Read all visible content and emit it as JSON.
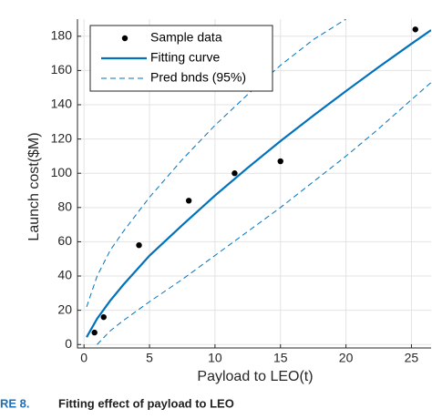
{
  "chart_data": {
    "type": "scatter",
    "xlabel": "Payload to LEO(t)",
    "ylabel": "Launch cost($M)",
    "caption_label": "RE 8.",
    "caption": "Fitting effect of payload to LEO",
    "xlim": [
      -0.5,
      26.5
    ],
    "ylim": [
      -2,
      190
    ],
    "xticks": [
      0,
      5,
      10,
      15,
      20,
      25
    ],
    "yticks": [
      0,
      20,
      40,
      60,
      80,
      100,
      120,
      140,
      160,
      180
    ],
    "grid": true,
    "legend": "upper left",
    "series": [
      {
        "name": "Sample data",
        "kind": "points",
        "color": "#000000",
        "x": [
          0.8,
          1.5,
          4.2,
          8,
          11.5,
          15,
          25.3
        ],
        "values": [
          7,
          16,
          58,
          84,
          100,
          107,
          184
        ]
      },
      {
        "name": "Fitting curve",
        "kind": "line",
        "color": "#0072bd",
        "x": [
          0.2,
          1,
          2,
          3,
          5,
          7.5,
          10,
          12.5,
          15,
          17.5,
          20,
          22.5,
          25,
          26.5
        ],
        "values": [
          4.3,
          15.1,
          25.6,
          34.9,
          51.9,
          69.7,
          87.0,
          103.2,
          118.8,
          133.6,
          148.0,
          162.0,
          175.6,
          183.6
        ]
      },
      {
        "name": "Pred bnds (95%)",
        "kind": "dashed",
        "color": "#0072bd",
        "x": [
          0.2,
          1,
          2,
          3,
          5,
          7.5,
          10,
          12.5,
          15,
          17.5,
          20
        ],
        "values": [
          22,
          40,
          55,
          66,
          86,
          108,
          128,
          146,
          163,
          178,
          190
        ]
      },
      {
        "kind": "dashed",
        "color": "#0072bd",
        "x": [
          1,
          2,
          3,
          5,
          7.5,
          10,
          12.5,
          15,
          17.5,
          20,
          22.5,
          25,
          26.5
        ],
        "values": [
          0,
          8,
          14,
          25,
          38,
          52,
          66,
          80,
          95,
          110,
          126,
          143,
          153
        ]
      }
    ]
  }
}
